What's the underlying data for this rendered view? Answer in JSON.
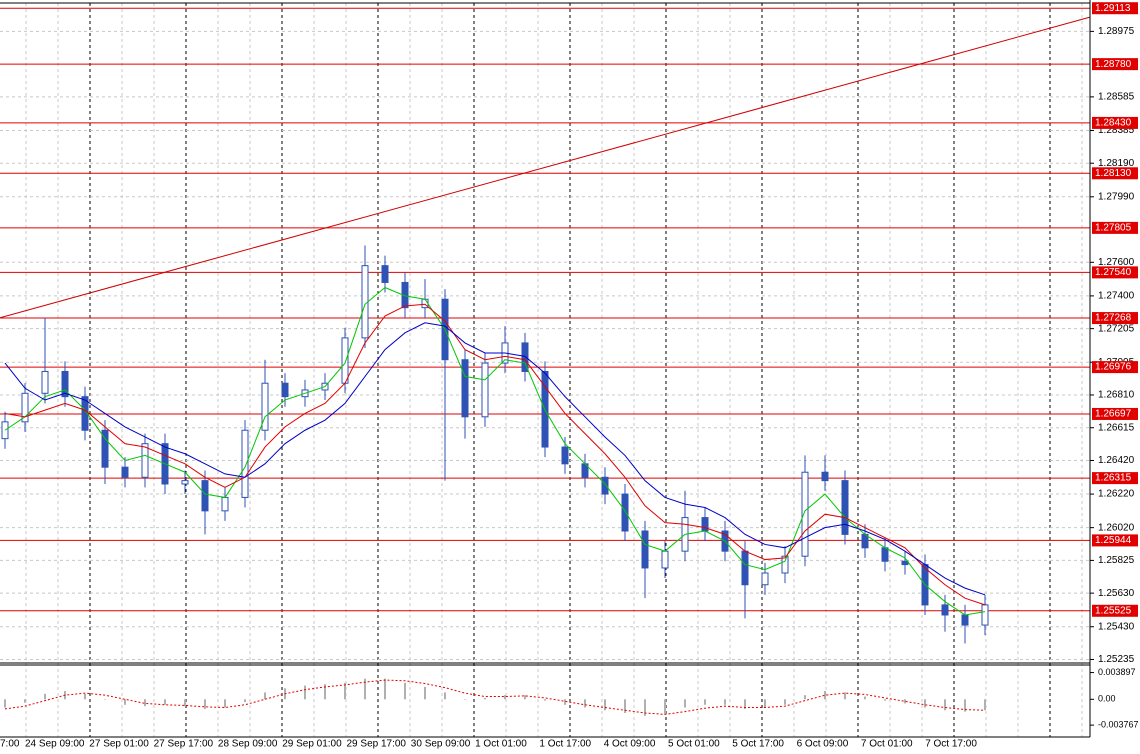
{
  "chart_data": {
    "type": "candlestick",
    "color": "#2f52b5",
    "open": [
      1.2655,
      1.2665,
      1.2682,
      1.2695,
      1.268,
      1.266,
      1.2638,
      1.2632,
      1.2652,
      1.2628,
      1.263,
      1.2612,
      1.262,
      1.266,
      1.2688,
      1.268,
      1.2684,
      1.2688,
      1.2715,
      1.2758,
      1.2748,
      1.2733,
      1.2738,
      1.2702,
      1.2668,
      1.27,
      1.2712,
      1.2695,
      1.265,
      1.264,
      1.2632,
      1.2622,
      1.26,
      1.2578,
      1.2588,
      1.2608,
      1.26,
      1.2588,
      1.2568,
      1.2575,
      1.2585,
      1.2635,
      1.263,
      1.2598,
      1.259,
      1.2582,
      1.258,
      1.2556,
      1.255,
      1.2544
    ],
    "high": [
      1.2671,
      1.2688,
      1.2727,
      1.2701,
      1.2686,
      1.2666,
      1.2644,
      1.2658,
      1.2658,
      1.2636,
      1.2636,
      1.2626,
      1.2666,
      1.2702,
      1.2694,
      1.269,
      1.2694,
      1.2721,
      1.277,
      1.2764,
      1.2754,
      1.275,
      1.2744,
      1.2708,
      1.2706,
      1.2722,
      1.2718,
      1.2701,
      1.2656,
      1.2646,
      1.2638,
      1.2628,
      1.2606,
      1.2594,
      1.2624,
      1.2614,
      1.2606,
      1.2594,
      1.2581,
      1.2591,
      1.2645,
      1.2645,
      1.2636,
      1.2604,
      1.2596,
      1.2588,
      1.2586,
      1.2562,
      1.2556,
      1.2562
    ],
    "low": [
      1.2649,
      1.2659,
      1.2676,
      1.2674,
      1.2654,
      1.2628,
      1.2626,
      1.2626,
      1.2622,
      1.2622,
      1.2598,
      1.2606,
      1.2614,
      1.2654,
      1.2674,
      1.2674,
      1.2678,
      1.2682,
      1.2709,
      1.2742,
      1.2727,
      1.2727,
      1.263,
      1.2655,
      1.2662,
      1.2694,
      1.2689,
      1.2644,
      1.2634,
      1.2626,
      1.2616,
      1.2594,
      1.256,
      1.2572,
      1.2582,
      1.2594,
      1.2582,
      1.2548,
      1.2562,
      1.2569,
      1.2579,
      1.2624,
      1.2592,
      1.2584,
      1.2576,
      1.2574,
      1.255,
      1.254,
      1.2533,
      1.2538
    ],
    "close": [
      1.2665,
      1.2682,
      1.2695,
      1.268,
      1.266,
      1.2638,
      1.2632,
      1.2652,
      1.2628,
      1.263,
      1.2612,
      1.262,
      1.266,
      1.2688,
      1.268,
      1.2684,
      1.2688,
      1.2715,
      1.2758,
      1.2748,
      1.2733,
      1.2738,
      1.2702,
      1.2668,
      1.27,
      1.2712,
      1.2695,
      1.265,
      1.264,
      1.2632,
      1.2622,
      1.26,
      1.2578,
      1.2588,
      1.2608,
      1.26,
      1.2588,
      1.2568,
      1.2575,
      1.2585,
      1.2635,
      1.263,
      1.2598,
      1.259,
      1.2582,
      1.258,
      1.2556,
      1.255,
      1.2544,
      1.2556
    ],
    "ma": [
      {
        "color": "#00c800",
        "values": [
          1.266,
          1.2668,
          1.268,
          1.2684,
          1.2672,
          1.2655,
          1.2642,
          1.2645,
          1.264,
          1.2635,
          1.2622,
          1.262,
          1.2638,
          1.2668,
          1.2678,
          1.2682,
          1.2686,
          1.27,
          1.2735,
          1.2745,
          1.274,
          1.2738,
          1.272,
          1.2692,
          1.269,
          1.2702,
          1.27,
          1.2672,
          1.2652,
          1.264,
          1.2628,
          1.2612,
          1.2592,
          1.2588,
          1.2598,
          1.26,
          1.2594,
          1.258,
          1.2577,
          1.2582,
          1.2612,
          1.2622,
          1.2608,
          1.2598,
          1.259,
          1.2584,
          1.2568,
          1.2558,
          1.255,
          1.2552
        ]
      },
      {
        "color": "#e00000",
        "values": [
          1.267,
          1.2668,
          1.2672,
          1.2676,
          1.2672,
          1.2662,
          1.2652,
          1.265,
          1.2645,
          1.264,
          1.2632,
          1.2626,
          1.2632,
          1.265,
          1.2662,
          1.267,
          1.2676,
          1.2688,
          1.2712,
          1.2728,
          1.2734,
          1.2735,
          1.2725,
          1.2708,
          1.2702,
          1.2704,
          1.2702,
          1.2686,
          1.267,
          1.2658,
          1.2646,
          1.2632,
          1.2615,
          1.2605,
          1.2604,
          1.2602,
          1.2598,
          1.2588,
          1.2583,
          1.2584,
          1.26,
          1.261,
          1.2608,
          1.2602,
          1.2596,
          1.259,
          1.2578,
          1.2568,
          1.256,
          1.2556
        ]
      },
      {
        "color": "#0000c8",
        "values": [
          1.27,
          1.2685,
          1.2678,
          1.2682,
          1.2678,
          1.267,
          1.2662,
          1.2656,
          1.265,
          1.2646,
          1.264,
          1.2634,
          1.2632,
          1.264,
          1.2652,
          1.266,
          1.2666,
          1.2676,
          1.2692,
          1.2708,
          1.2718,
          1.2724,
          1.2722,
          1.2712,
          1.2706,
          1.2706,
          1.2704,
          1.2694,
          1.268,
          1.2668,
          1.2656,
          1.2645,
          1.263,
          1.262,
          1.2616,
          1.2614,
          1.2608,
          1.2598,
          1.2592,
          1.259,
          1.2596,
          1.2602,
          1.2604,
          1.26,
          1.2595,
          1.2588,
          1.258,
          1.2572,
          1.2566,
          1.2562
        ]
      }
    ],
    "ylim": [
      1.2522,
      1.2915
    ],
    "yticks": [
      1.28975,
      1.28585,
      1.28385,
      {
        "value": 1.2819,
        "label": "1.28190"
      },
      {
        "value": 1.2799,
        "label": "1.27990"
      },
      {
        "value": 1.276,
        "label": "1.27600"
      },
      {
        "value": 1.274,
        "label": "1.27400"
      },
      1.27205,
      1.27005,
      {
        "value": 1.2681,
        "label": "1.26810"
      },
      1.26615,
      {
        "value": 1.2642,
        "label": "1.26420"
      },
      {
        "value": 1.2622,
        "label": "1.26220"
      },
      {
        "value": 1.2602,
        "label": "1.26020"
      },
      1.25825,
      {
        "value": 1.2563,
        "label": "1.25630"
      },
      {
        "value": 1.2543,
        "label": "1.25430"
      },
      1.25235
    ],
    "level_color": "#e00000",
    "levels": [
      1.29113,
      {
        "value": 1.2878,
        "label": "1.28780"
      },
      {
        "value": 1.2843,
        "label": "1.28430"
      },
      {
        "value": 1.2813,
        "label": "1.28130"
      },
      1.27805,
      {
        "value": 1.2754,
        "label": "1.27540"
      },
      1.27268,
      1.26976,
      1.26697,
      1.26315,
      1.25944,
      1.25525
    ],
    "trendline": {
      "start": 1.2727,
      "end": 1.2906,
      "color": "#d00000"
    },
    "grid": true,
    "xlabels": [
      "7:00",
      "24 Sep 09:00",
      "27 Sep 01:00",
      "27 Sep 17:00",
      "28 Sep 09:00",
      "29 Sep 01:00",
      "29 Sep 17:00",
      "30 Sep 09:00",
      "1 Oct 01:00",
      "1 Oct 17:00",
      "4 Oct 09:00",
      "5 Oct 01:00",
      "5 Oct 17:00",
      "6 Oct 09:00",
      "7 Oct 01:00",
      "7 Oct 17:00"
    ],
    "oscillator": {
      "type": "bar",
      "color": "#b0b0b0",
      "signal_color": "#e00000",
      "values": [
        -0.0012,
        -0.0005,
        0.0008,
        0.0012,
        0.0008,
        0,
        -0.0008,
        -0.001,
        -0.0008,
        -0.001,
        -0.0014,
        -0.0012,
        -0.0004,
        0.001,
        0.0016,
        0.002,
        0.0022,
        0.0024,
        0.003,
        0.003,
        0.0024,
        0.0018,
        0.001,
        0,
        0.0002,
        0.0006,
        0.0006,
        -0.0002,
        -0.0008,
        -0.0012,
        -0.0016,
        -0.002,
        -0.0024,
        -0.0022,
        -0.0012,
        -0.0008,
        -0.0008,
        -0.0014,
        -0.0012,
        -0.0008,
        0.0006,
        0.0012,
        0.001,
        0.0004,
        -0.0002,
        -0.0006,
        -0.0012,
        -0.0016,
        -0.0018,
        -0.0016
      ],
      "signal": [
        -0.0014,
        -0.001,
        -0.0002,
        0.0006,
        0.0009,
        0.0006,
        0,
        -0.0006,
        -0.0008,
        -0.0009,
        -0.0011,
        -0.0012,
        -0.0008,
        0,
        0.0008,
        0.0014,
        0.0018,
        0.0021,
        0.0025,
        0.0028,
        0.0027,
        0.0023,
        0.0017,
        0.0009,
        0.0004,
        0.0004,
        0.0005,
        0.0002,
        -0.0003,
        -0.0008,
        -0.0012,
        -0.0016,
        -0.002,
        -0.0022,
        -0.0018,
        -0.0013,
        -0.001,
        -0.0012,
        -0.0012,
        -0.001,
        -0.0002,
        0.0006,
        0.0009,
        0.0007,
        0.0002,
        -0.0003,
        -0.0008,
        -0.0012,
        -0.0015,
        -0.0016
      ],
      "ylim": [
        -0.0055,
        0.005
      ],
      "yticks": [
        0.003897,
        {
          "value": 0,
          "label": "0.00"
        },
        -0.003767
      ]
    }
  }
}
